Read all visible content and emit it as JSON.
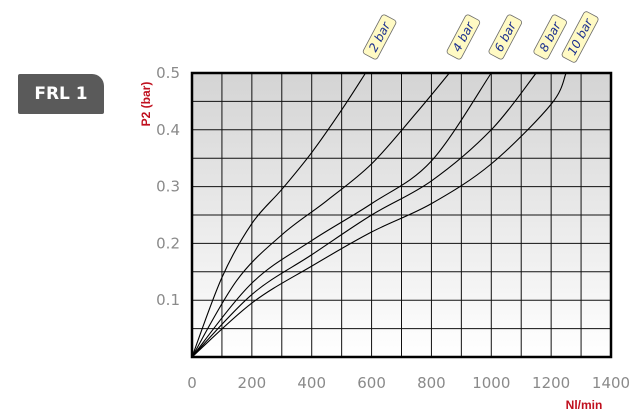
{
  "badge": {
    "label": "FRL 1"
  },
  "chart_data": {
    "type": "line",
    "xlabel": "Nl/min",
    "ylabel": "P2 (bar)",
    "xlim": [
      0,
      1400
    ],
    "ylim": [
      0,
      0.5
    ],
    "x_ticks": [
      "0",
      "200",
      "400",
      "600",
      "800",
      "1000",
      "1200",
      "1400"
    ],
    "y_ticks": [
      "0.1",
      "0.2",
      "0.3",
      "0.4",
      "0.5"
    ],
    "grid": true,
    "series": [
      {
        "name": "2 bar",
        "x": [
          0,
          100,
          200,
          300,
          400,
          500,
          580
        ],
        "y": [
          0,
          0.14,
          0.235,
          0.295,
          0.36,
          0.435,
          0.5
        ]
      },
      {
        "name": "4 bar",
        "x": [
          0,
          150,
          300,
          450,
          600,
          750,
          860
        ],
        "y": [
          0,
          0.135,
          0.215,
          0.275,
          0.34,
          0.43,
          0.5
        ]
      },
      {
        "name": "6 bar",
        "x": [
          0,
          200,
          400,
          600,
          800,
          1000
        ],
        "y": [
          0,
          0.13,
          0.205,
          0.27,
          0.345,
          0.5
        ]
      },
      {
        "name": "8 bar",
        "x": [
          0,
          200,
          400,
          600,
          800,
          1000,
          1150
        ],
        "y": [
          0,
          0.11,
          0.18,
          0.25,
          0.31,
          0.4,
          0.5
        ]
      },
      {
        "name": "10 bar",
        "x": [
          0,
          200,
          400,
          600,
          800,
          1000,
          1200,
          1250
        ],
        "y": [
          0,
          0.095,
          0.16,
          0.22,
          0.27,
          0.34,
          0.445,
          0.5
        ]
      }
    ]
  }
}
